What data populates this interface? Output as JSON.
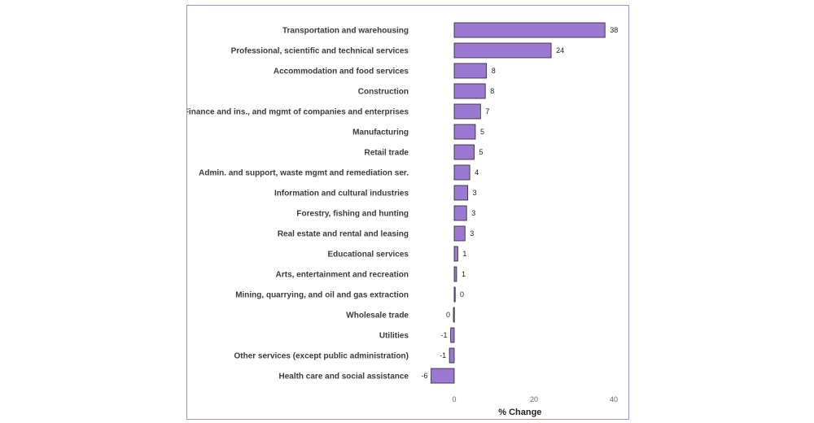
{
  "chart_data": {
    "type": "bar",
    "orientation": "horizontal",
    "categories": [
      "Transportation and warehousing",
      "Professional, scientific and technical services",
      "Accommodation and food services",
      "Construction",
      "Finance and ins., and mgmt of companies and enterprises",
      "Manufacturing",
      "Retail trade",
      "Admin. and support, waste mgmt and remediation ser.",
      "Information and cultural industries",
      "Forestry, fishing and hunting",
      "Real estate and rental and leasing",
      "Educational services",
      "Arts, entertainment and recreation",
      "Mining, quarrying, and oil and gas extraction",
      "Wholesale trade",
      "Utilities",
      "Other services (except public administration)",
      "Health care and social assistance"
    ],
    "values": [
      37.8,
      24.3,
      8.1,
      7.8,
      6.6,
      5.3,
      5.0,
      3.9,
      3.4,
      3.1,
      2.7,
      0.9,
      0.6,
      0.2,
      -0.2,
      -0.9,
      -1.2,
      -5.8
    ],
    "value_labels": [
      "38",
      "24",
      "8",
      "8",
      "7",
      "5",
      "5",
      "4",
      "3",
      "3",
      "3",
      "1",
      "1",
      "0",
      "0",
      "-1",
      "-1",
      "-6"
    ],
    "xlabel": "% Change",
    "xlim": [
      -6,
      40
    ],
    "xticks": [
      "0",
      "20",
      "40"
    ],
    "grid": false,
    "bar_color": "#9b78d2",
    "bar_edge_color": "#222222"
  }
}
